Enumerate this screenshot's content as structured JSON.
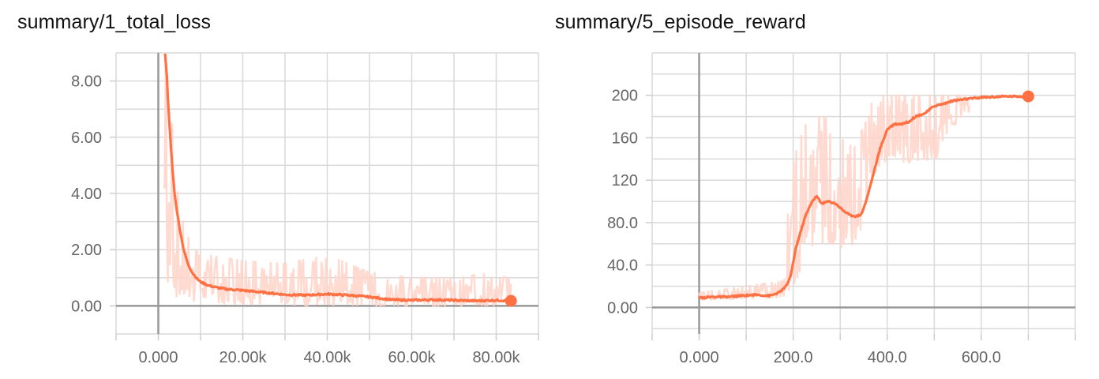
{
  "accent_color": "#ff7043",
  "raw_color": "#ffd4c8",
  "charts": [
    {
      "title": "summary/1_total_loss",
      "chart_data": {
        "type": "line",
        "series_name": "",
        "x_range": [
          -10000,
          90000
        ],
        "y_range": [
          -1.0,
          9.0
        ],
        "x_ticks": [
          0,
          20000,
          40000,
          60000,
          80000
        ],
        "x_tick_labels": [
          "0.000",
          "20.00k",
          "40.00k",
          "60.00k",
          "80.00k"
        ],
        "y_ticks": [
          0,
          2,
          4,
          6,
          8
        ],
        "y_tick_labels": [
          "0.00",
          "2.00",
          "4.00",
          "6.00",
          "8.00"
        ],
        "grid": true,
        "smoothed": [
          [
            1600,
            9.0
          ],
          [
            2000,
            8.2
          ],
          [
            2500,
            6.8
          ],
          [
            3000,
            5.6
          ],
          [
            3500,
            4.6
          ],
          [
            4000,
            3.8
          ],
          [
            5000,
            2.8
          ],
          [
            6000,
            2.0
          ],
          [
            7000,
            1.5
          ],
          [
            8000,
            1.2
          ],
          [
            9000,
            1.0
          ],
          [
            10000,
            0.85
          ],
          [
            12000,
            0.72
          ],
          [
            14000,
            0.65
          ],
          [
            16000,
            0.6
          ],
          [
            20000,
            0.55
          ],
          [
            25000,
            0.48
          ],
          [
            30000,
            0.4
          ],
          [
            35000,
            0.38
          ],
          [
            40000,
            0.42
          ],
          [
            45000,
            0.38
          ],
          [
            50000,
            0.32
          ],
          [
            55000,
            0.22
          ],
          [
            60000,
            0.2
          ],
          [
            65000,
            0.22
          ],
          [
            70000,
            0.2
          ],
          [
            75000,
            0.18
          ],
          [
            80000,
            0.2
          ],
          [
            83500,
            0.18
          ]
        ],
        "raw_band": [
          [
            1500,
            9.0,
            1.0
          ],
          [
            3000,
            7.0,
            0.5
          ],
          [
            5000,
            3.5,
            0.2
          ],
          [
            8000,
            2.0,
            0.1
          ],
          [
            12000,
            1.8,
            0.1
          ],
          [
            20000,
            1.6,
            0.05
          ],
          [
            30000,
            1.5,
            0.0
          ],
          [
            40000,
            1.8,
            0.0
          ],
          [
            50000,
            1.2,
            0.0
          ],
          [
            60000,
            1.0,
            0.0
          ],
          [
            70000,
            1.0,
            0.0
          ],
          [
            80000,
            1.2,
            0.0
          ],
          [
            83500,
            0.9,
            0.0
          ]
        ],
        "last_point": [
          83500,
          0.18
        ]
      }
    },
    {
      "title": "summary/5_episode_reward",
      "chart_data": {
        "type": "line",
        "series_name": "",
        "x_range": [
          -100,
          800
        ],
        "y_range": [
          -25,
          240
        ],
        "x_ticks": [
          0,
          200,
          400,
          600
        ],
        "x_tick_labels": [
          "0.000",
          "200.0",
          "400.0",
          "600.0"
        ],
        "y_ticks": [
          0,
          40,
          80,
          120,
          160,
          200
        ],
        "y_tick_labels": [
          "0.00",
          "40.0",
          "80.0",
          "120",
          "160",
          "200"
        ],
        "grid": true,
        "smoothed": [
          [
            0,
            9
          ],
          [
            30,
            10
          ],
          [
            60,
            10
          ],
          [
            90,
            11
          ],
          [
            120,
            12
          ],
          [
            150,
            11
          ],
          [
            170,
            14
          ],
          [
            185,
            20
          ],
          [
            195,
            30
          ],
          [
            205,
            55
          ],
          [
            215,
            70
          ],
          [
            225,
            85
          ],
          [
            240,
            100
          ],
          [
            250,
            105
          ],
          [
            260,
            98
          ],
          [
            275,
            100
          ],
          [
            290,
            98
          ],
          [
            305,
            92
          ],
          [
            320,
            87
          ],
          [
            335,
            86
          ],
          [
            345,
            88
          ],
          [
            355,
            100
          ],
          [
            370,
            125
          ],
          [
            385,
            150
          ],
          [
            400,
            168
          ],
          [
            415,
            173
          ],
          [
            430,
            173
          ],
          [
            445,
            175
          ],
          [
            460,
            180
          ],
          [
            480,
            183
          ],
          [
            500,
            190
          ],
          [
            520,
            192
          ],
          [
            540,
            195
          ],
          [
            560,
            196
          ],
          [
            600,
            198
          ],
          [
            650,
            199
          ],
          [
            700,
            199
          ]
        ],
        "raw_band": [
          [
            0,
            14,
            7
          ],
          [
            100,
            20,
            8
          ],
          [
            180,
            25,
            10
          ],
          [
            200,
            170,
            20
          ],
          [
            220,
            170,
            40
          ],
          [
            250,
            180,
            60
          ],
          [
            280,
            180,
            60
          ],
          [
            300,
            160,
            55
          ],
          [
            330,
            150,
            60
          ],
          [
            350,
            190,
            80
          ],
          [
            360,
            200,
            100
          ],
          [
            380,
            200,
            130
          ],
          [
            400,
            200,
            140
          ],
          [
            430,
            200,
            135
          ],
          [
            460,
            200,
            135
          ],
          [
            500,
            200,
            135
          ],
          [
            520,
            200,
            160
          ],
          [
            560,
            200,
            180
          ],
          [
            575,
            200,
            185
          ]
        ],
        "last_point": [
          700,
          199
        ]
      }
    }
  ]
}
